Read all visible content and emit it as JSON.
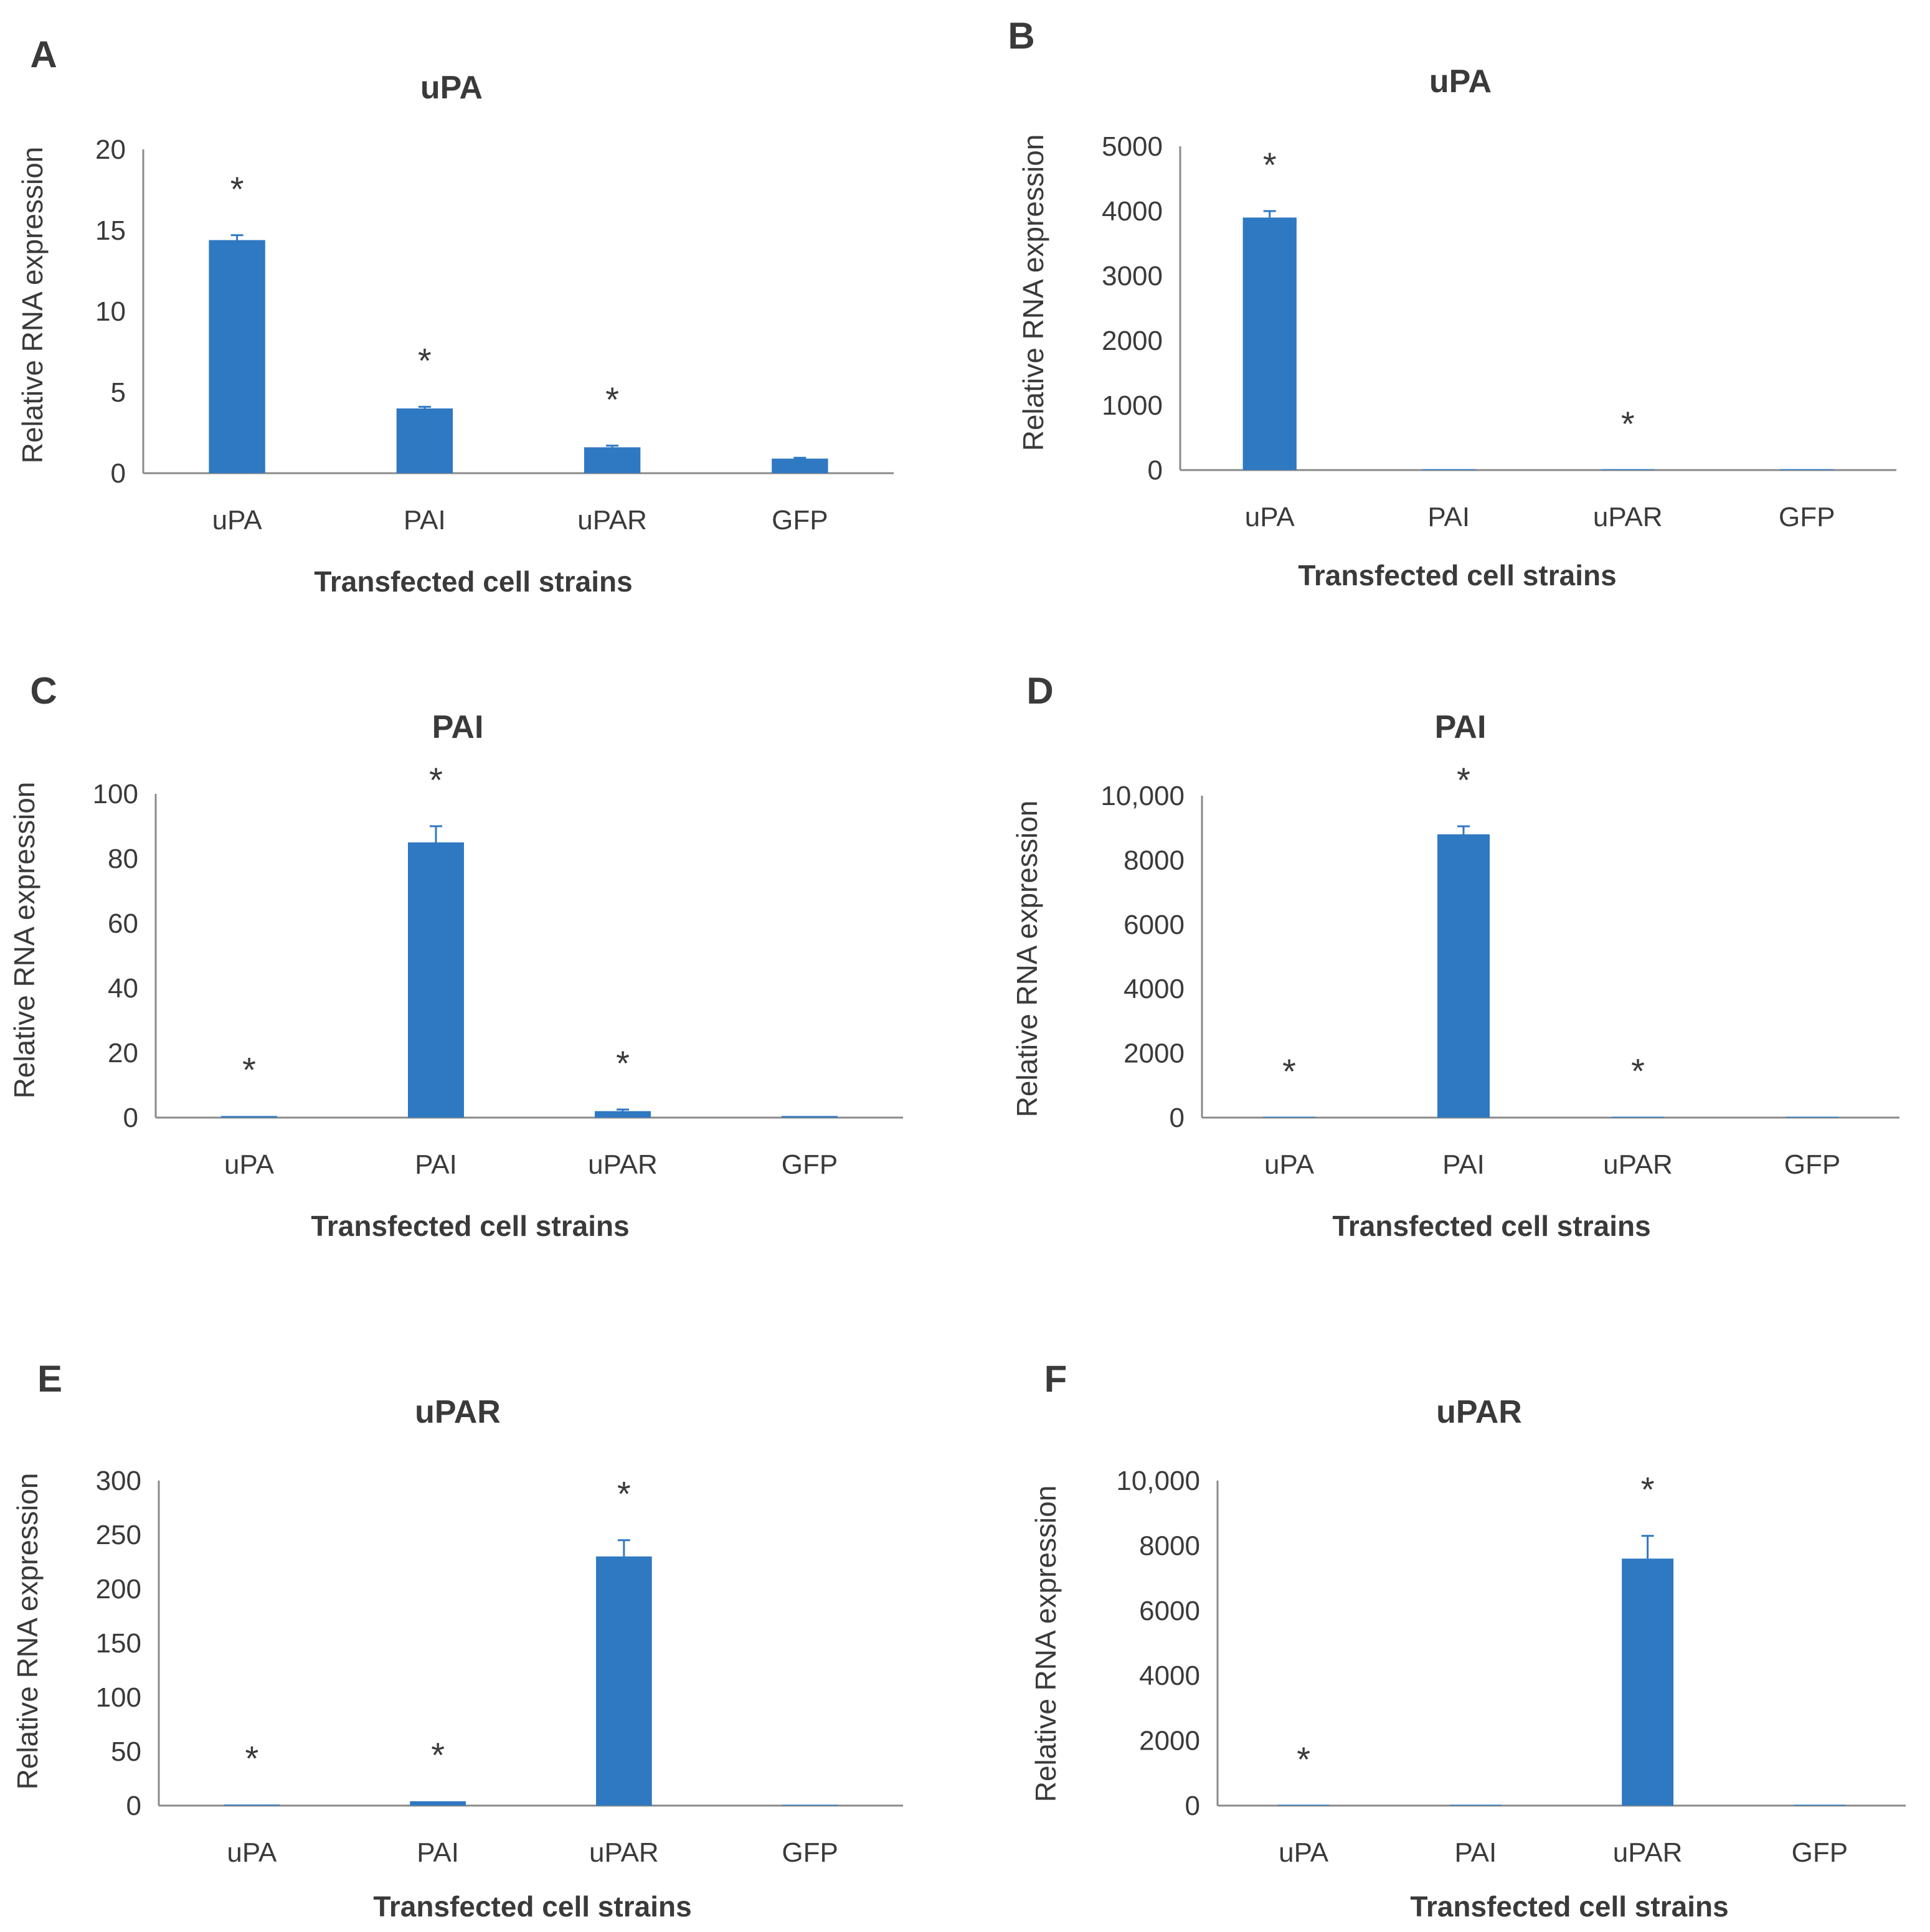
{
  "chart_data": [
    {
      "panel": "A",
      "type": "bar",
      "title": "uPA",
      "ylabel": "Relative RNA expression",
      "xlabel": "Transfected cell strains",
      "categories": [
        "uPA",
        "PAI",
        "uPAR",
        "GFP"
      ],
      "values": [
        14.4,
        4.0,
        1.6,
        0.9
      ],
      "errors": [
        0.3,
        0.1,
        0.1,
        0.05
      ],
      "significant": [
        true,
        true,
        true,
        false
      ],
      "ylim": [
        0,
        20
      ],
      "yticks": [
        "0",
        "5",
        "10",
        "15",
        "20"
      ],
      "bar_color": "#2f78c2",
      "grid": false,
      "legend": "none"
    },
    {
      "panel": "B",
      "type": "bar",
      "title": "uPA",
      "ylabel": "Relative RNA expression",
      "xlabel": "Transfected cell strains",
      "categories": [
        "uPA",
        "PAI",
        "uPAR",
        "GFP"
      ],
      "values": [
        3900,
        0,
        2,
        1
      ],
      "errors": [
        100,
        0,
        0,
        0
      ],
      "significant": [
        true,
        false,
        true,
        false
      ],
      "ylim": [
        0,
        5000
      ],
      "yticks": [
        "0",
        "1000",
        "2000",
        "3000",
        "4000",
        "5000"
      ],
      "bar_color": "#2f78c2",
      "grid": false,
      "legend": "none"
    },
    {
      "panel": "C",
      "type": "bar",
      "title": "PAI",
      "ylabel": "Relative RNA expression",
      "xlabel": "Transfected cell strains",
      "categories": [
        "uPA",
        "PAI",
        "uPAR",
        "GFP"
      ],
      "values": [
        0.5,
        85,
        2,
        0.5
      ],
      "errors": [
        0,
        5,
        0.5,
        0
      ],
      "significant": [
        true,
        true,
        true,
        false
      ],
      "ylim": [
        0,
        100
      ],
      "yticks": [
        "0",
        "20",
        "40",
        "60",
        "80",
        "100"
      ],
      "bar_color": "#2f78c2",
      "grid": false,
      "legend": "none"
    },
    {
      "panel": "D",
      "type": "bar",
      "title": "PAI",
      "ylabel": "Relative RNA expression",
      "xlabel": "Transfected cell strains",
      "categories": [
        "uPA",
        "PAI",
        "uPAR",
        "GFP"
      ],
      "values": [
        1,
        8800,
        5,
        1
      ],
      "errors": [
        0,
        250,
        0,
        0
      ],
      "significant": [
        true,
        true,
        true,
        false
      ],
      "ylim": [
        0,
        10000
      ],
      "yticks": [
        "0",
        "2000",
        "4000",
        "6000",
        "8000",
        "10,000"
      ],
      "bar_color": "#2f78c2",
      "grid": false,
      "legend": "none"
    },
    {
      "panel": "E",
      "type": "bar",
      "title": "uPAR",
      "ylabel": "Relative RNA expression",
      "xlabel": "Transfected cell strains",
      "categories": [
        "uPA",
        "PAI",
        "uPAR",
        "GFP"
      ],
      "values": [
        1,
        4,
        230,
        0
      ],
      "errors": [
        0,
        0,
        15,
        0
      ],
      "significant": [
        true,
        true,
        true,
        false
      ],
      "ylim": [
        0,
        300
      ],
      "yticks": [
        "0",
        "50",
        "100",
        "150",
        "200",
        "250",
        "300"
      ],
      "bar_color": "#2f78c2",
      "grid": false,
      "legend": "none"
    },
    {
      "panel": "F",
      "type": "bar",
      "title": "uPAR",
      "ylabel": "Relative RNA expression",
      "xlabel": "Transfected cell strains",
      "categories": [
        "uPA",
        "PAI",
        "uPAR",
        "GFP"
      ],
      "values": [
        1,
        0,
        7600,
        0
      ],
      "errors": [
        0,
        0,
        700,
        0
      ],
      "significant": [
        true,
        false,
        true,
        false
      ],
      "ylim": [
        0,
        10000
      ],
      "yticks": [
        "0",
        "2000",
        "4000",
        "6000",
        "8000",
        "10,000"
      ],
      "bar_color": "#2f78c2",
      "grid": false,
      "legend": "none"
    }
  ],
  "significance_marker": "*"
}
